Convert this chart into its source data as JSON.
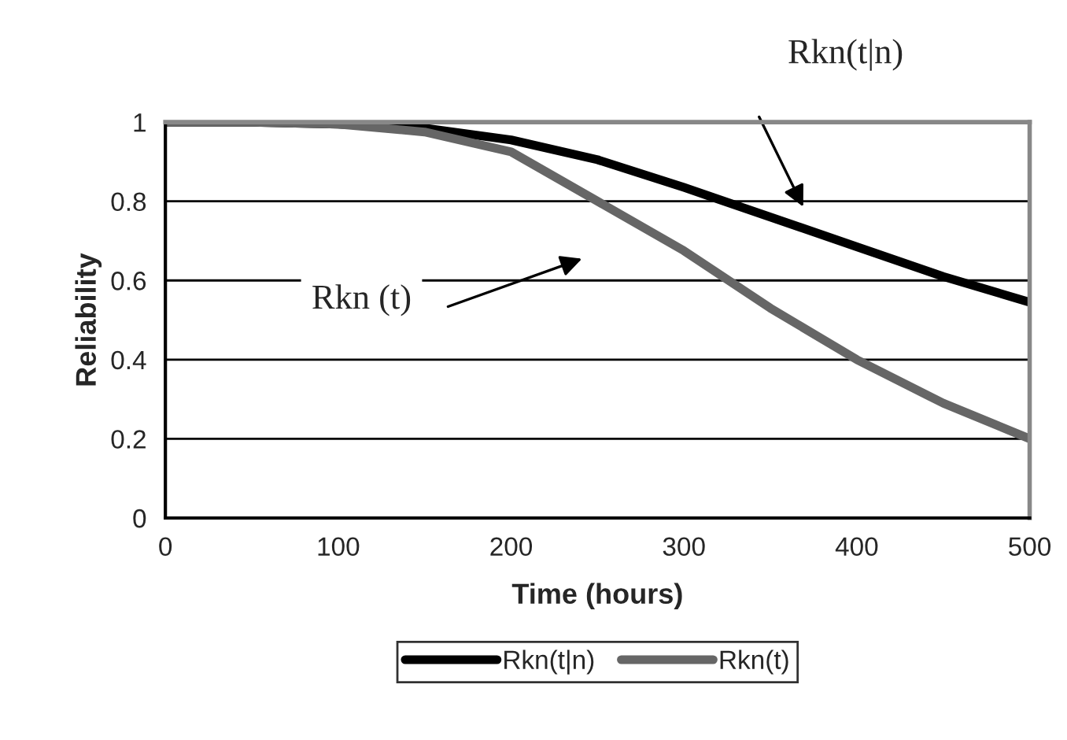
{
  "chart_data": {
    "type": "line",
    "xlabel": "Time (hours)",
    "ylabel": "Reliability",
    "x": [
      0,
      50,
      100,
      150,
      200,
      250,
      300,
      350,
      400,
      450,
      500
    ],
    "series": [
      {
        "name": "Rkn(t|n)",
        "color": "#000000",
        "values": [
          1,
          1,
          0.995,
          0.985,
          0.955,
          0.905,
          0.835,
          0.76,
          0.685,
          0.61,
          0.545
        ]
      },
      {
        "name": "Rkn(t)",
        "color": "#666666",
        "values": [
          1,
          1,
          0.995,
          0.975,
          0.925,
          0.8,
          0.675,
          0.53,
          0.4,
          0.29,
          0.2
        ]
      }
    ],
    "xlim": [
      0,
      500
    ],
    "ylim": [
      0,
      1
    ],
    "xticks": [
      0,
      100,
      200,
      300,
      400,
      500
    ],
    "yticks": [
      0,
      0.2,
      0.4,
      0.6,
      0.8,
      1
    ],
    "grid": "y",
    "legend": "bottom",
    "marker": "none",
    "line_style": "solid",
    "annotations": [
      "Rkn(t|n)",
      "Rkn (t)"
    ]
  }
}
